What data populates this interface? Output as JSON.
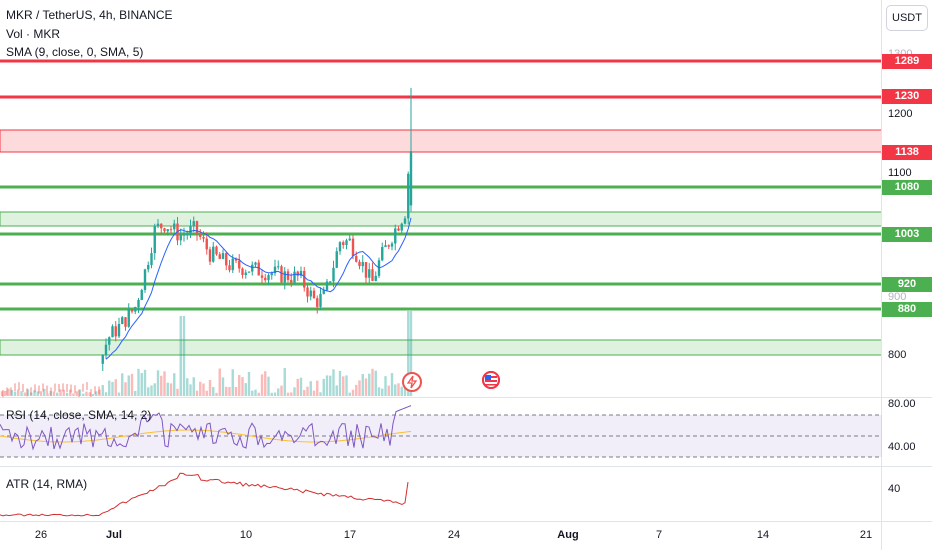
{
  "header": {
    "symbol_line": "MKR / TetherUS, 4h, BINANCE",
    "vol_line": "Vol · MKR",
    "sma_line": "SMA (9, close, 0, SMA, 5)"
  },
  "currency_button": "USDT",
  "price_labels": [
    {
      "value": "1289",
      "color": "#f23645"
    },
    {
      "value": "1230",
      "color": "#f23645"
    },
    {
      "value": "1138",
      "color": "#f23645"
    },
    {
      "value": "1080",
      "color": "#4caf50"
    },
    {
      "value": "1003",
      "color": "#4caf50"
    },
    {
      "value": "920",
      "color": "#4caf50"
    },
    {
      "value": "880",
      "color": "#4caf50"
    }
  ],
  "price_axis": [
    "1300",
    "1200",
    "1100",
    "900",
    "800"
  ],
  "rsi": {
    "label": "RSI (14, close, SMA, 14, 2)",
    "axis": [
      "80.00",
      "40.00"
    ]
  },
  "atr": {
    "label": "ATR (14, RMA)",
    "axis": [
      "40"
    ]
  },
  "date_axis": [
    "26",
    "Jul",
    "10",
    "17",
    "24",
    "Aug",
    "7",
    "14",
    "21"
  ],
  "events": [
    {
      "icon": "lightning-icon"
    },
    {
      "icon": "us-flag-icon"
    }
  ],
  "colors": {
    "up": "#26a69a",
    "down": "#ef5350",
    "red_level": "#f23645",
    "green_level": "#4caf50",
    "sma": "#2962ff"
  }
}
